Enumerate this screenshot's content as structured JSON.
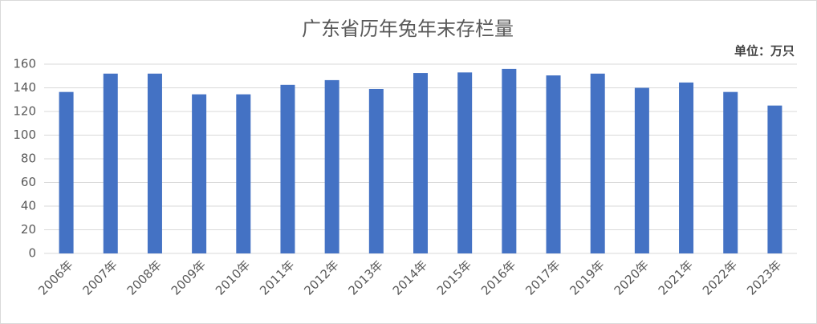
{
  "chart_data": {
    "type": "bar",
    "title": "广东省历年兔年末存栏量",
    "unit_label": "单位：万只",
    "categories": [
      "2006年",
      "2007年",
      "2008年",
      "2009年",
      "2010年",
      "2011年",
      "2012年",
      "2013年",
      "2014年",
      "2015年",
      "2016年",
      "2017年",
      "2019年",
      "2020年",
      "2021年",
      "2022年",
      "2023年"
    ],
    "values": [
      136.5,
      152,
      152,
      134.5,
      134.5,
      142.5,
      146.5,
      139,
      152.5,
      153,
      156,
      150.5,
      152,
      140,
      144.5,
      136.5,
      125
    ],
    "color": "#4472c4",
    "ylim": [
      0,
      160
    ],
    "yticks": [
      0,
      20,
      40,
      60,
      80,
      100,
      120,
      140,
      160
    ],
    "grid": true
  }
}
